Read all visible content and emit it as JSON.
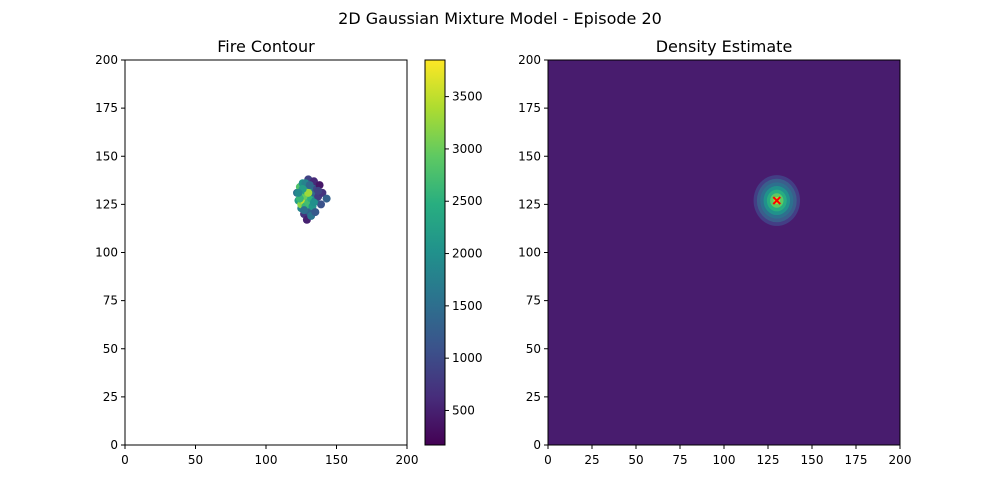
{
  "figure": {
    "suptitle": "2D Gaussian Mixture Model - Episode 20"
  },
  "chart_data": [
    {
      "type": "scatter",
      "title": "Fire Contour",
      "xlabel": "",
      "ylabel": "",
      "xlim": [
        0,
        200
      ],
      "ylim": [
        0,
        200
      ],
      "xticks": [
        0,
        50,
        100,
        150,
        200
      ],
      "yticks": [
        0,
        25,
        50,
        75,
        100,
        125,
        150,
        175,
        200
      ],
      "grid": false,
      "colormap": "viridis",
      "colorbar": {
        "range": [
          170,
          3850
        ],
        "ticks": [
          500,
          1000,
          1500,
          2000,
          2500,
          3000,
          3500
        ]
      },
      "points": [
        {
          "x": 122,
          "y": 131,
          "v": 1500
        },
        {
          "x": 123,
          "y": 127,
          "v": 2200
        },
        {
          "x": 124,
          "y": 134,
          "v": 2800
        },
        {
          "x": 125,
          "y": 123,
          "v": 1800
        },
        {
          "x": 125,
          "y": 125,
          "v": 3200
        },
        {
          "x": 126,
          "y": 130,
          "v": 2900
        },
        {
          "x": 126,
          "y": 136,
          "v": 2000
        },
        {
          "x": 127,
          "y": 120,
          "v": 700
        },
        {
          "x": 127,
          "y": 127,
          "v": 3500
        },
        {
          "x": 128,
          "y": 132,
          "v": 2400
        },
        {
          "x": 128,
          "y": 124,
          "v": 2600
        },
        {
          "x": 129,
          "y": 117,
          "v": 500
        },
        {
          "x": 129,
          "y": 129,
          "v": 3000
        },
        {
          "x": 130,
          "y": 138,
          "v": 900
        },
        {
          "x": 130,
          "y": 126,
          "v": 2700
        },
        {
          "x": 131,
          "y": 121,
          "v": 1300
        },
        {
          "x": 131,
          "y": 133,
          "v": 2300
        },
        {
          "x": 132,
          "y": 128,
          "v": 2500
        },
        {
          "x": 132,
          "y": 119,
          "v": 1600
        },
        {
          "x": 133,
          "y": 135,
          "v": 1700
        },
        {
          "x": 133,
          "y": 124,
          "v": 2100
        },
        {
          "x": 134,
          "y": 131,
          "v": 1400
        },
        {
          "x": 134,
          "y": 137,
          "v": 600
        },
        {
          "x": 135,
          "y": 127,
          "v": 1900
        },
        {
          "x": 135,
          "y": 121,
          "v": 1200
        },
        {
          "x": 136,
          "y": 133,
          "v": 1000
        },
        {
          "x": 137,
          "y": 129,
          "v": 800
        },
        {
          "x": 138,
          "y": 135,
          "v": 400
        },
        {
          "x": 139,
          "y": 125,
          "v": 1100
        },
        {
          "x": 140,
          "y": 131,
          "v": 700
        },
        {
          "x": 143,
          "y": 128,
          "v": 1300
        },
        {
          "x": 128,
          "y": 136,
          "v": 1800
        },
        {
          "x": 124,
          "y": 128,
          "v": 2600
        },
        {
          "x": 130,
          "y": 131,
          "v": 3300
        },
        {
          "x": 127,
          "y": 122,
          "v": 1500
        },
        {
          "x": 134,
          "y": 126,
          "v": 2000
        },
        {
          "x": 126,
          "y": 133,
          "v": 2200
        },
        {
          "x": 131,
          "y": 135,
          "v": 1400
        },
        {
          "x": 123,
          "y": 131,
          "v": 1900
        },
        {
          "x": 137,
          "y": 132,
          "v": 900
        }
      ]
    },
    {
      "type": "heatmap",
      "title": "Density Estimate",
      "xlabel": "",
      "ylabel": "",
      "xlim": [
        0,
        200
      ],
      "ylim": [
        0,
        200
      ],
      "xticks": [
        0,
        25,
        50,
        75,
        100,
        125,
        150,
        175,
        200
      ],
      "yticks": [
        0,
        25,
        50,
        75,
        100,
        125,
        150,
        175,
        200
      ],
      "grid": false,
      "colormap": "viridis",
      "background_color": "#481c6e",
      "gaussian": {
        "mean": [
          130,
          127
        ],
        "std": [
          4,
          4
        ]
      },
      "marker": {
        "x": 130,
        "y": 127,
        "symbol": "x",
        "color": "#ff0000"
      },
      "contour_colors": [
        "#481c6e",
        "#433e85",
        "#3a5e8c",
        "#2d708e",
        "#21918c",
        "#27ad81",
        "#5ec962",
        "#aadc32"
      ]
    }
  ]
}
